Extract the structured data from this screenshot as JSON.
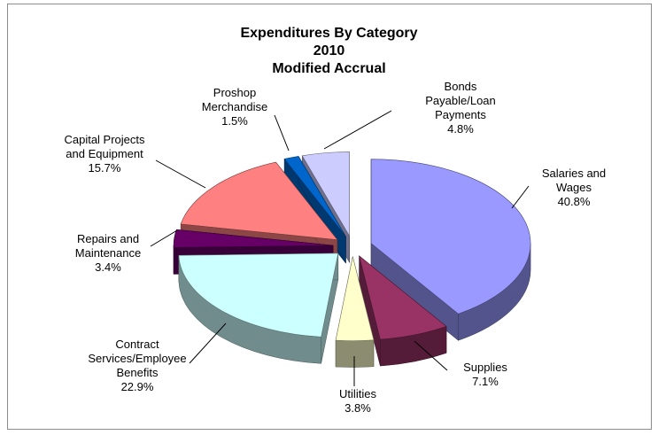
{
  "chart_data": {
    "type": "pie3d",
    "title": [
      "Expenditures By Category",
      "2010",
      "Modified Accrual"
    ],
    "categories": [
      "Salaries and\nWages",
      "Supplies",
      "Utilities",
      "Contract\nServices/Employee\nBenefits",
      "Repairs and\nMaintenance",
      "Capital Projects\nand Equipment",
      "Proshop\nMerchandise",
      "Bonds\nPayable/Loan\nPayments"
    ],
    "values": [
      40.8,
      7.1,
      3.8,
      22.9,
      3.4,
      15.7,
      1.5,
      4.8
    ],
    "value_labels": [
      "40.8%",
      "7.1%",
      "3.8%",
      "22.9%",
      "3.4%",
      "15.7%",
      "1.5%",
      "4.8%"
    ],
    "colors": [
      "#9999ff",
      "#993366",
      "#ffffcc",
      "#ccffff",
      "#660066",
      "#ff8080",
      "#0066cc",
      "#ccccff"
    ]
  }
}
